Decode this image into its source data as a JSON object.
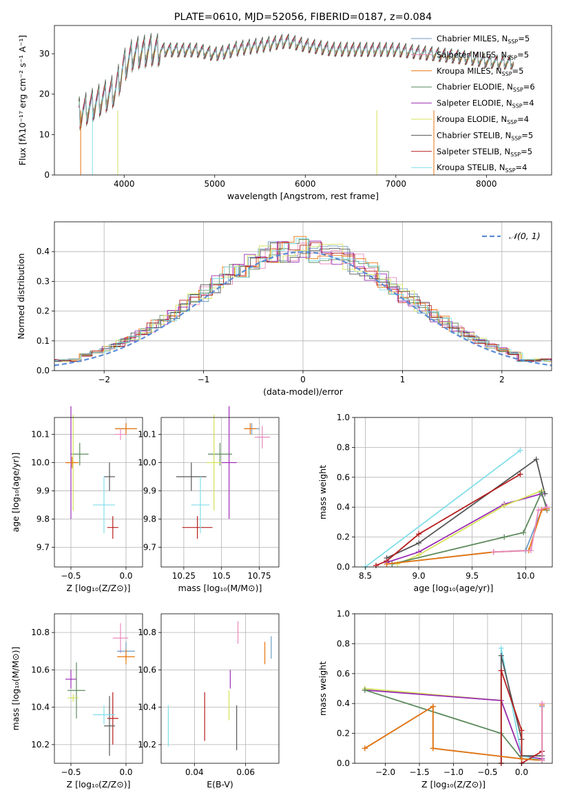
{
  "chart_data": [
    {
      "id": "spectrum",
      "type": "line",
      "title": "PLATE=0610, MJD=52056, FIBERID=0187, z=0.084",
      "xlabel": "wavelength [Angstrom, rest frame]",
      "ylabel": "Flux [fλ10⁻¹⁷ erg cm⁻² s⁻¹ A⁻¹]",
      "xlim": [
        3230,
        8720
      ],
      "ylim": [
        0,
        37
      ],
      "xticks": [
        4000,
        5000,
        6000,
        7000,
        8000
      ],
      "yticks": [
        0,
        10,
        20,
        30
      ],
      "legend_position": "top-right",
      "grid": false,
      "legend": [
        {
          "label": "Chabrier MILES, N",
          "sub": "SSP",
          "suffix": "=5",
          "color": "#6a9bc3"
        },
        {
          "label": "Salpeter MILES, N",
          "sub": "SSP",
          "suffix": "=5",
          "color": "#e889bd"
        },
        {
          "label": "Kroupa MILES, N",
          "sub": "SSP",
          "suffix": "=5",
          "color": "#e8740c"
        },
        {
          "label": "Chabrier ELODIE, N",
          "sub": "SSP",
          "suffix": "=6",
          "color": "#5c8a5c"
        },
        {
          "label": "Salpeter ELODIE, N",
          "sub": "SSP",
          "suffix": "=4",
          "color": "#9b2db5"
        },
        {
          "label": "Kroupa ELODIE, N",
          "sub": "SSP",
          "suffix": "=4",
          "color": "#d4e157"
        },
        {
          "label": "Chabrier STELIB, N",
          "sub": "SSP",
          "suffix": "=5",
          "color": "#555555"
        },
        {
          "label": "Salpeter STELIB, N",
          "sub": "SSP",
          "suffix": "=5",
          "color": "#b71c1c"
        },
        {
          "label": "Kroupa STELIB, N",
          "sub": "SSP",
          "suffix": "=4",
          "color": "#80deea"
        }
      ],
      "data_color": "#808080",
      "continuum": {
        "x": [
          3500,
          3700,
          3900,
          4000,
          4100,
          4300,
          4500,
          4800,
          5000,
          5200,
          5500,
          5800,
          6000,
          6300,
          6600,
          7000,
          7400,
          7800,
          8100,
          8300
        ],
        "y": [
          15,
          18,
          21,
          27,
          30,
          31,
          31,
          31,
          30,
          31,
          32,
          33,
          32,
          31,
          31,
          31,
          30,
          29,
          28,
          28
        ]
      }
    },
    {
      "id": "residuals",
      "type": "histogram",
      "xlabel": "(data-model)/error",
      "ylabel": "Normed distribution",
      "xlim": [
        -2.5,
        2.5
      ],
      "ylim": [
        0,
        0.5
      ],
      "xticks": [
        -2,
        -1,
        0,
        1,
        2
      ],
      "yticks": [
        0.0,
        0.1,
        0.2,
        0.3,
        0.4
      ],
      "grid": true,
      "legend_position": "top-right",
      "reference_label": "𝒩(0, 1)",
      "reference_color": "#5b8bd6"
    },
    {
      "id": "age-vs-z",
      "type": "errorbar",
      "xlabel": "Z [log₁₀(Z/Z⊙)]",
      "ylabel": "age  [log₁₀(age/yr)]",
      "xlim": [
        -0.65,
        0.15
      ],
      "ylim": [
        9.63,
        10.16
      ],
      "xticks": [
        -0.5,
        0.0
      ],
      "yticks": [
        9.7,
        9.8,
        9.9,
        10.0,
        10.1
      ],
      "grid": true,
      "points": [
        {
          "x": -0.42,
          "y": 10.03,
          "xerr": 0.08,
          "yerr": 0.04,
          "color": "#5c8a5c"
        },
        {
          "x": -0.5,
          "y": 10.0,
          "xerr": 0.05,
          "yerr": 0.2,
          "color": "#9b2db5"
        },
        {
          "x": -0.48,
          "y": 10.0,
          "xerr": 0.05,
          "yerr": 0.17,
          "color": "#d4e157"
        },
        {
          "x": -0.49,
          "y": 10.0,
          "xerr": 0.06,
          "yerr": 0.02,
          "color": "#e8740c"
        },
        {
          "x": 0.0,
          "y": 10.12,
          "xerr": 0.1,
          "yerr": 0.02,
          "color": "#6a9bc3"
        },
        {
          "x": 0.0,
          "y": 10.12,
          "xerr": 0.1,
          "yerr": 0.02,
          "color": "#e8740c"
        },
        {
          "x": -0.05,
          "y": 10.1,
          "xerr": 0.05,
          "yerr": 0.02,
          "color": "#e889bd"
        },
        {
          "x": -0.15,
          "y": 9.95,
          "xerr": 0.05,
          "yerr": 0.05,
          "color": "#555555"
        },
        {
          "x": -0.12,
          "y": 9.77,
          "xerr": 0.05,
          "yerr": 0.04,
          "color": "#b71c1c"
        },
        {
          "x": -0.2,
          "y": 9.85,
          "xerr": 0.1,
          "yerr": 0.1,
          "color": "#80deea"
        }
      ]
    },
    {
      "id": "age-vs-mass",
      "type": "errorbar",
      "xlabel": "mass [log₁₀(M/M⊙)]",
      "xlim": [
        10.1,
        10.88
      ],
      "ylim": [
        9.63,
        10.16
      ],
      "xticks": [
        10.25,
        10.5,
        10.75
      ],
      "yticks": [
        9.7,
        9.8,
        9.9,
        10.0,
        10.1
      ],
      "grid": true,
      "points": [
        {
          "x": 10.7,
          "y": 10.12,
          "xerr": 0.05,
          "yerr": 0.02,
          "color": "#6a9bc3"
        },
        {
          "x": 10.69,
          "y": 10.12,
          "xerr": 0.04,
          "yerr": 0.02,
          "color": "#e8740c"
        },
        {
          "x": 10.77,
          "y": 10.09,
          "xerr": 0.05,
          "yerr": 0.04,
          "color": "#e889bd"
        },
        {
          "x": 10.49,
          "y": 10.03,
          "xerr": 0.08,
          "yerr": 0.04,
          "color": "#5c8a5c"
        },
        {
          "x": 10.55,
          "y": 10.0,
          "xerr": 0.05,
          "yerr": 0.2,
          "color": "#9b2db5"
        },
        {
          "x": 10.45,
          "y": 10.0,
          "xerr": 0.05,
          "yerr": 0.17,
          "color": "#d4e157"
        },
        {
          "x": 10.3,
          "y": 9.95,
          "xerr": 0.1,
          "yerr": 0.05,
          "color": "#555555"
        },
        {
          "x": 10.34,
          "y": 9.77,
          "xerr": 0.1,
          "yerr": 0.04,
          "color": "#b71c1c"
        },
        {
          "x": 10.36,
          "y": 9.85,
          "xerr": 0.06,
          "yerr": 0.1,
          "color": "#80deea"
        }
      ]
    },
    {
      "id": "cumulative-age",
      "type": "line",
      "xlabel": "age  [log₁₀(age/yr)]",
      "ylabel": "mass weight",
      "xlim": [
        8.4,
        10.25
      ],
      "ylim": [
        0,
        1.0
      ],
      "xticks": [
        8.5,
        9.0,
        9.5,
        10.0
      ],
      "yticks": [
        0.0,
        0.2,
        0.4,
        0.6,
        0.8,
        1.0
      ],
      "grid": true,
      "series": [
        {
          "color": "#80deea",
          "x": [
            8.5,
            9.95
          ],
          "y": [
            0.0,
            0.78
          ]
        },
        {
          "color": "#555555",
          "x": [
            8.7,
            9.0,
            10.1,
            10.18
          ],
          "y": [
            0.06,
            0.16,
            0.72,
            0.49
          ]
        },
        {
          "color": "#b71c1c",
          "x": [
            8.6,
            8.7,
            9.0,
            9.95
          ],
          "y": [
            0.01,
            0.04,
            0.22,
            0.62
          ]
        },
        {
          "color": "#9b2db5",
          "x": [
            8.7,
            9.0,
            9.8,
            10.15,
            10.2
          ],
          "y": [
            0.03,
            0.1,
            0.42,
            0.49,
            0.4
          ]
        },
        {
          "color": "#d4e157",
          "x": [
            8.8,
            9.0,
            9.8,
            10.15
          ],
          "y": [
            0.02,
            0.08,
            0.41,
            0.51
          ]
        },
        {
          "color": "#5c8a5c",
          "x": [
            8.75,
            9.8,
            9.98,
            10.15,
            10.2
          ],
          "y": [
            0.02,
            0.2,
            0.23,
            0.5,
            0.38
          ]
        },
        {
          "color": "#6a9bc3",
          "x": [
            8.7,
            9.7,
            10.0,
            10.15,
            10.2
          ],
          "y": [
            0.02,
            0.1,
            0.11,
            0.38,
            0.39
          ]
        },
        {
          "color": "#e8740c",
          "x": [
            8.7,
            9.7,
            10.03,
            10.15,
            10.2
          ],
          "y": [
            0.02,
            0.1,
            0.11,
            0.38,
            0.39
          ]
        },
        {
          "color": "#e889bd",
          "x": [
            9.7,
            10.05,
            10.12,
            10.2
          ],
          "y": [
            0.1,
            0.11,
            0.38,
            0.4
          ]
        }
      ]
    },
    {
      "id": "mass-vs-z",
      "type": "errorbar",
      "xlabel": "Z [log₁₀(Z/Z⊙)]",
      "ylabel": "mass [log₁₀(M/M⊙)]",
      "xlim": [
        -0.65,
        0.15
      ],
      "ylim": [
        10.1,
        10.9
      ],
      "xticks": [
        -0.5,
        0.0
      ],
      "yticks": [
        10.2,
        10.4,
        10.6,
        10.8
      ],
      "grid": true,
      "points": [
        {
          "x": -0.05,
          "y": 10.77,
          "xerr": 0.07,
          "yerr": 0.08,
          "color": "#e889bd"
        },
        {
          "x": 0.0,
          "y": 10.7,
          "xerr": 0.08,
          "yerr": 0.05,
          "color": "#6a9bc3"
        },
        {
          "x": 0.0,
          "y": 10.67,
          "xerr": 0.08,
          "yerr": 0.04,
          "color": "#e8740c"
        },
        {
          "x": -0.5,
          "y": 10.55,
          "xerr": 0.05,
          "yerr": 0.05,
          "color": "#9b2db5"
        },
        {
          "x": -0.45,
          "y": 10.49,
          "xerr": 0.08,
          "yerr": 0.15,
          "color": "#5c8a5c"
        },
        {
          "x": -0.48,
          "y": 10.45,
          "xerr": 0.05,
          "yerr": 0.02,
          "color": "#d4e157"
        },
        {
          "x": -0.12,
          "y": 10.34,
          "xerr": 0.05,
          "yerr": 0.14,
          "color": "#b71c1c"
        },
        {
          "x": -0.15,
          "y": 10.3,
          "xerr": 0.05,
          "yerr": 0.16,
          "color": "#555555"
        },
        {
          "x": -0.2,
          "y": 10.36,
          "xerr": 0.1,
          "yerr": 0.05,
          "color": "#80deea"
        }
      ]
    },
    {
      "id": "mass-vs-ebv",
      "type": "errorbar",
      "xlabel": "E(B-V)",
      "xlim": [
        0.027,
        0.073
      ],
      "ylim": [
        10.1,
        10.9
      ],
      "xticks": [
        0.04,
        0.06
      ],
      "yticks": [
        10.2,
        10.4,
        10.6,
        10.8
      ],
      "grid": true,
      "points": [
        {
          "x": 0.0298,
          "y": 10.3,
          "xerr": 0,
          "yerr": 0.11,
          "color": "#80deea"
        },
        {
          "x": 0.044,
          "y": 10.35,
          "xerr": 0,
          "yerr": 0.13,
          "color": "#b71c1c"
        },
        {
          "x": 0.0535,
          "y": 10.41,
          "xerr": 0,
          "yerr": 0.08,
          "color": "#d4e157"
        },
        {
          "x": 0.054,
          "y": 10.55,
          "xerr": 0,
          "yerr": 0.05,
          "color": "#9b2db5"
        },
        {
          "x": 0.0565,
          "y": 10.29,
          "xerr": 0,
          "yerr": 0.12,
          "color": "#555555"
        },
        {
          "x": 0.057,
          "y": 10.8,
          "xerr": 0,
          "yerr": 0.06,
          "color": "#e889bd"
        },
        {
          "x": 0.0675,
          "y": 10.69,
          "xerr": 0,
          "yerr": 0.06,
          "color": "#e8740c"
        },
        {
          "x": 0.07,
          "y": 10.72,
          "xerr": 0,
          "yerr": 0.06,
          "color": "#6a9bc3"
        }
      ]
    },
    {
      "id": "cumulative-z",
      "type": "line",
      "xlabel": "Z [log₁₀(Z/Z⊙)]",
      "ylabel": "mass weight",
      "xlim": [
        -2.45,
        0.45
      ],
      "ylim": [
        0,
        1.0
      ],
      "xticks": [
        -2.0,
        -1.5,
        -1.0,
        -0.5,
        0.0
      ],
      "yticks": [
        0.0,
        0.2,
        0.4,
        0.6,
        0.8,
        1.0
      ],
      "grid": true,
      "series": [
        {
          "color": "#d4e157",
          "x": [
            -2.3,
            -0.3,
            0.0,
            0.3
          ],
          "y": [
            0.5,
            0.42,
            0.05,
            0.02
          ]
        },
        {
          "color": "#9b2db5",
          "x": [
            -2.3,
            -0.3,
            0.0,
            0.3
          ],
          "y": [
            0.49,
            0.42,
            0.05,
            0.03
          ]
        },
        {
          "color": "#5c8a5c",
          "x": [
            -2.3,
            -0.3,
            0.0,
            0.3
          ],
          "y": [
            0.49,
            0.2,
            0.03,
            0.02
          ]
        },
        {
          "color": "#80deea",
          "x": [
            -0.3,
            -0.3,
            0.0,
            0.3
          ],
          "y": [
            0.0,
            0.77,
            0.05,
            0.02
          ]
        },
        {
          "color": "#555555",
          "x": [
            -0.3,
            -0.3,
            0.0,
            0.0,
            0.3
          ],
          "y": [
            0.0,
            0.72,
            0.16,
            0.05,
            0.05
          ]
        },
        {
          "color": "#b71c1c",
          "x": [
            -0.3,
            -0.3,
            0.0,
            0.0,
            0.3
          ],
          "y": [
            0.0,
            0.62,
            0.22,
            0.0,
            0.08
          ]
        },
        {
          "color": "#6a9bc3",
          "x": [
            -2.3,
            -1.3,
            -1.3,
            0.0,
            0.3,
            0.3
          ],
          "y": [
            0.1,
            0.38,
            0.1,
            0.03,
            0.02,
            0.38
          ]
        },
        {
          "color": "#e8740c",
          "x": [
            -2.3,
            -1.3,
            -1.3,
            0.0,
            0.3,
            0.3
          ],
          "y": [
            0.1,
            0.38,
            0.1,
            0.03,
            0.02,
            0.39
          ]
        },
        {
          "color": "#e889bd",
          "x": [
            0.3,
            0.3
          ],
          "y": [
            0.02,
            0.4
          ]
        }
      ]
    }
  ]
}
